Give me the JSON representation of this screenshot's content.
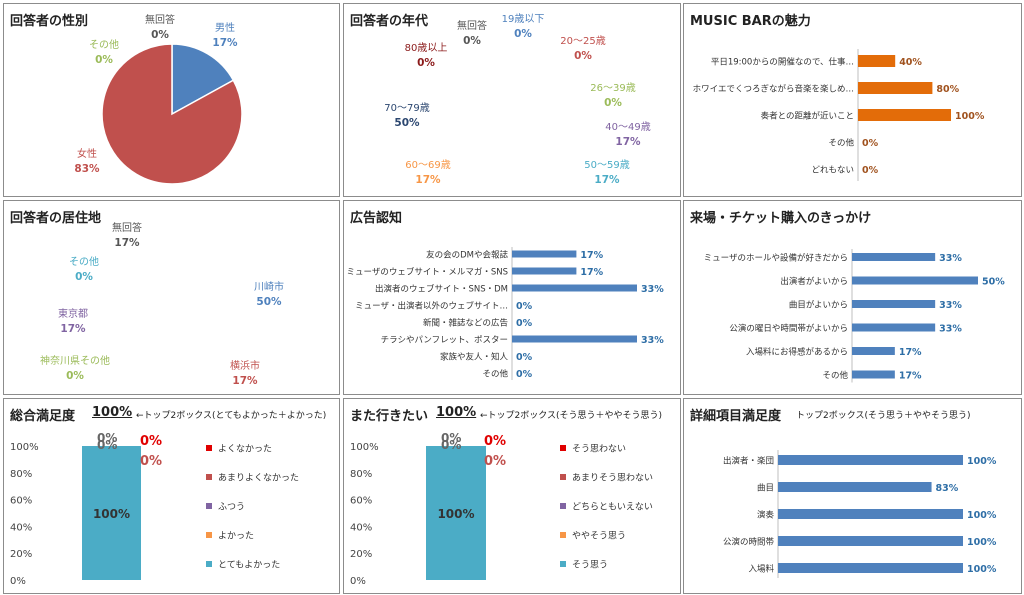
{
  "colors": {
    "blue": "#4f81bd",
    "red": "#c0504d",
    "green": "#9bbb59",
    "purple": "#8064a2",
    "teal": "#4bacc6",
    "orange": "#f79646",
    "navy": "#2c4770",
    "maroon": "#8b1a1a",
    "gray": "#7f7f7f",
    "bar_orange": "#e36c09",
    "bar_blue": "#4f81bd",
    "brightred": "#e00000",
    "darkred": "#c0504d"
  },
  "panels": {
    "gender": {
      "title": "回答者の性別"
    },
    "age": {
      "title": "回答者の年代"
    },
    "appeal": {
      "title": "MUSIC BARの魅力"
    },
    "residence": {
      "title": "回答者の居住地"
    },
    "ad": {
      "title": "広告認知"
    },
    "trigger": {
      "title": "来場・チケット購入のきっかけ"
    },
    "overall": {
      "title": "総合満足度",
      "top2": "100%",
      "note": "←トップ2ボックス(とてもよかった＋よかった)"
    },
    "again": {
      "title": "また行きたい",
      "top2": "100%",
      "note": "←トップ2ボックス(そう思う＋ややそう思う)"
    },
    "detail": {
      "title": "詳細項目満足度",
      "note": "トップ2ボックス(そう思う＋ややそう思う)"
    }
  },
  "chart_data": [
    {
      "id": "gender",
      "type": "pie",
      "title": "回答者の性別",
      "slices": [
        {
          "label": "男性",
          "value": 17,
          "color": "#4f81bd"
        },
        {
          "label": "女性",
          "value": 83,
          "color": "#c0504d"
        },
        {
          "label": "その他",
          "value": 0,
          "color": "#9bbb59"
        },
        {
          "label": "無回答",
          "value": 0,
          "color": "#7f7f7f"
        }
      ]
    },
    {
      "id": "age",
      "type": "pie",
      "title": "回答者の年代",
      "slices": [
        {
          "label": "19歳以下",
          "value": 0,
          "color": "#4f81bd"
        },
        {
          "label": "20～25歳",
          "value": 0,
          "color": "#c0504d"
        },
        {
          "label": "26～39歳",
          "value": 0,
          "color": "#9bbb59"
        },
        {
          "label": "40～49歳",
          "value": 17,
          "color": "#8064a2"
        },
        {
          "label": "50～59歳",
          "value": 17,
          "color": "#4bacc6"
        },
        {
          "label": "60～69歳",
          "value": 17,
          "color": "#f79646"
        },
        {
          "label": "70～79歳",
          "value": 50,
          "color": "#2c4770"
        },
        {
          "label": "80歳以上",
          "value": 0,
          "color": "#8b1a1a"
        },
        {
          "label": "無回答",
          "value": 0,
          "color": "#7f7f7f"
        }
      ]
    },
    {
      "id": "appeal",
      "type": "bar",
      "title": "MUSIC BARの魅力",
      "categories": [
        "平日19:00からの開催なので、仕事…",
        "ホワイエでくつろぎながら音楽を楽しめ…",
        "奏者との距離が近いこと",
        "その他",
        "どれもない"
      ],
      "values": [
        40,
        80,
        100,
        0,
        0
      ],
      "labels": [
        "40%",
        "80%",
        "100%",
        "0%",
        "0%"
      ],
      "xlim": [
        0,
        100
      ]
    },
    {
      "id": "residence",
      "type": "pie",
      "title": "回答者の居住地",
      "slices": [
        {
          "label": "川崎市",
          "value": 50,
          "color": "#4f81bd"
        },
        {
          "label": "横浜市",
          "value": 17,
          "color": "#c0504d"
        },
        {
          "label": "神奈川県その他",
          "value": 0,
          "color": "#9bbb59"
        },
        {
          "label": "東京都",
          "value": 17,
          "color": "#8064a2"
        },
        {
          "label": "その他",
          "value": 0,
          "color": "#4bacc6"
        },
        {
          "label": "無回答",
          "value": 17,
          "color": "#7f7f7f"
        }
      ]
    },
    {
      "id": "ad",
      "type": "bar",
      "title": "広告認知",
      "categories": [
        "友の会のDMや会報誌",
        "ミューザのウェブサイト・メルマガ・SNS",
        "出演者のウェブサイト・SNS・DM",
        "ミューザ・出演者以外のウェブサイト…",
        "新聞・雑誌などの広告",
        "チラシやパンフレット、ポスター",
        "家族や友人・知人",
        "その他"
      ],
      "values": [
        17,
        17,
        33,
        0,
        0,
        33,
        0,
        0
      ],
      "labels": [
        "17%",
        "17%",
        "33%",
        "0%",
        "0%",
        "33%",
        "0%",
        "0%"
      ],
      "xlim": [
        0,
        33
      ]
    },
    {
      "id": "trigger",
      "type": "bar",
      "title": "来場・チケット購入のきっかけ",
      "categories": [
        "ミューザのホールや設備が好きだから",
        "出演者がよいから",
        "曲目がよいから",
        "公演の曜日や時間帯がよいから",
        "入場料にお得感があるから",
        "その他"
      ],
      "values": [
        33,
        50,
        33,
        33,
        17,
        17
      ],
      "labels": [
        "33%",
        "50%",
        "33%",
        "33%",
        "17%",
        "17%"
      ],
      "xlim": [
        0,
        50
      ]
    },
    {
      "id": "overall",
      "type": "bar",
      "title": "総合満足度",
      "ylim": [
        0,
        100
      ],
      "yticks": [
        "0%",
        "20%",
        "40%",
        "60%",
        "80%",
        "100%"
      ],
      "series": [
        {
          "name": "よくなかった",
          "value": 0,
          "color": "#e00000"
        },
        {
          "name": "あまりよくなかった",
          "value": 0,
          "color": "#c0504d"
        },
        {
          "name": "ふつう",
          "value": 0,
          "color": "#8064a2"
        },
        {
          "name": "よかった",
          "value": 0,
          "color": "#f79646"
        },
        {
          "name": "とてもよかった",
          "value": 100,
          "color": "#4bacc6"
        }
      ],
      "data_labels": [
        "100%",
        "0%",
        "0%",
        "0%",
        "0%"
      ]
    },
    {
      "id": "again",
      "type": "bar",
      "title": "また行きたい",
      "ylim": [
        0,
        100
      ],
      "yticks": [
        "0%",
        "20%",
        "40%",
        "60%",
        "80%",
        "100%"
      ],
      "series": [
        {
          "name": "そう思わない",
          "value": 0,
          "color": "#e00000"
        },
        {
          "name": "あまりそう思わない",
          "value": 0,
          "color": "#c0504d"
        },
        {
          "name": "どちらともいえない",
          "value": 0,
          "color": "#8064a2"
        },
        {
          "name": "ややそう思う",
          "value": 0,
          "color": "#f79646"
        },
        {
          "name": "そう思う",
          "value": 100,
          "color": "#4bacc6"
        }
      ],
      "data_labels": [
        "100%",
        "0%",
        "0%",
        "0%",
        "0%"
      ]
    },
    {
      "id": "detail",
      "type": "bar",
      "title": "詳細項目満足度",
      "categories": [
        "出演者・楽団",
        "曲目",
        "演奏",
        "公演の時間帯",
        "入場料"
      ],
      "values": [
        100,
        83,
        100,
        100,
        100
      ],
      "labels": [
        "100%",
        "83%",
        "100%",
        "100%",
        "100%"
      ],
      "xlim": [
        0,
        100
      ]
    }
  ]
}
